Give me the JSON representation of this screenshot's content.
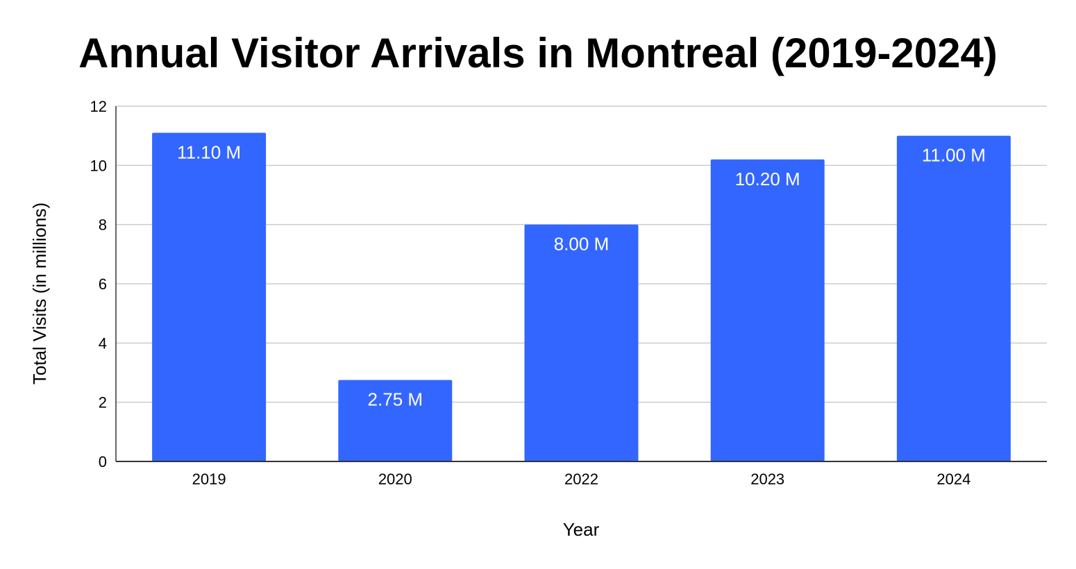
{
  "chart_data": {
    "type": "bar",
    "title": "Annual Visitor Arrivals in Montreal (2019-2024)",
    "xlabel": "Year",
    "ylabel": "Total Visits (in millions)",
    "categories": [
      "2019",
      "2020",
      "2022",
      "2023",
      "2024"
    ],
    "values": [
      11.1,
      2.75,
      8.0,
      10.2,
      11.0
    ],
    "data_labels": [
      "11.10 M",
      "2.75 M",
      "8.00 M",
      "10.20 M",
      "11.00 M"
    ],
    "ylim": [
      0,
      12
    ],
    "yticks": [
      "0",
      "2",
      "4",
      "6",
      "8",
      "10",
      "12"
    ],
    "grid": true,
    "legend": "none",
    "colors": {
      "bar": "#3366ff",
      "grid": "#cccccc",
      "axis": "#333333"
    }
  }
}
